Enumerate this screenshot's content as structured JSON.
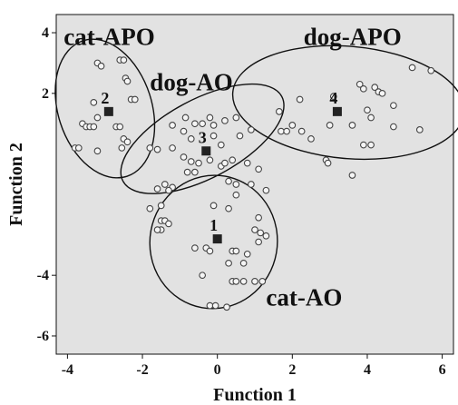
{
  "chart_data": {
    "type": "scatter",
    "xlabel": "Function 1",
    "ylabel": "Function 2",
    "xlim": [
      -4.3,
      6.3
    ],
    "ylim": [
      -6.6,
      4.6
    ],
    "xticks": [
      -4,
      -2,
      0,
      2,
      4,
      6
    ],
    "yticks": [
      -6,
      -4,
      2,
      4
    ],
    "tick_labels_x": [
      "-4",
      "-2",
      "0",
      "2",
      "4",
      "6"
    ],
    "tick_labels_y": [
      "-6",
      "-4",
      "2",
      "4"
    ],
    "grid": false,
    "background": "#e2e2e2",
    "groups": [
      {
        "name": "cat-APO",
        "centroid_label": "2",
        "centroid": [
          -2.9,
          1.4
        ],
        "ellipse": {
          "cx": -3.0,
          "cy": 1.5,
          "rx": 1.25,
          "ry": 2.35,
          "angle": -18
        },
        "label_pos": [
          -4.1,
          3.6
        ],
        "points": [
          [
            -3.2,
            3.0
          ],
          [
            -3.1,
            2.9
          ],
          [
            -2.6,
            3.1
          ],
          [
            -2.5,
            3.1
          ],
          [
            -2.45,
            2.5
          ],
          [
            -2.4,
            2.4
          ],
          [
            -2.3,
            1.8
          ],
          [
            -2.2,
            1.8
          ],
          [
            -3.3,
            1.7
          ],
          [
            -3.2,
            1.2
          ],
          [
            -3.6,
            1.0
          ],
          [
            -3.5,
            0.9
          ],
          [
            -3.4,
            0.9
          ],
          [
            -3.3,
            0.9
          ],
          [
            -2.7,
            0.9
          ],
          [
            -2.6,
            0.9
          ],
          [
            -2.5,
            0.5
          ],
          [
            -2.4,
            0.4
          ],
          [
            -3.8,
            0.2
          ],
          [
            -3.7,
            0.2
          ],
          [
            -3.2,
            0.1
          ],
          [
            -2.55,
            0.2
          ]
        ]
      },
      {
        "name": "dog-AO",
        "centroid_label": "3",
        "centroid": [
          -0.3,
          0.1
        ],
        "ellipse": {
          "cx": -0.4,
          "cy": 0.5,
          "rx": 2.4,
          "ry": 1.3,
          "angle": -28
        },
        "label_pos": [
          -1.8,
          2.1
        ],
        "points": [
          [
            -0.85,
            1.2
          ],
          [
            -0.6,
            1.0
          ],
          [
            -0.4,
            1.0
          ],
          [
            -0.2,
            1.2
          ],
          [
            -0.1,
            0.95
          ],
          [
            0.2,
            1.1
          ],
          [
            0.5,
            1.2
          ],
          [
            -1.2,
            0.95
          ],
          [
            -0.9,
            0.75
          ],
          [
            -0.7,
            0.5
          ],
          [
            -0.1,
            0.6
          ],
          [
            0.1,
            0.3
          ],
          [
            0.6,
            0.6
          ],
          [
            0.9,
            0.8
          ],
          [
            -1.8,
            0.2
          ],
          [
            -1.6,
            0.15
          ],
          [
            -1.2,
            0.2
          ],
          [
            -0.9,
            -0.1
          ],
          [
            -0.7,
            -0.25
          ],
          [
            -0.5,
            -0.3
          ],
          [
            -0.2,
            -0.2
          ],
          [
            0.1,
            -0.4
          ],
          [
            0.2,
            -0.3
          ],
          [
            0.4,
            -0.2
          ],
          [
            0.8,
            -0.3
          ],
          [
            1.1,
            -0.5
          ],
          [
            -0.8,
            -0.6
          ],
          [
            -0.6,
            -0.6
          ],
          [
            0.3,
            -0.9
          ],
          [
            0.5,
            -1.0
          ],
          [
            0.9,
            -1.0
          ],
          [
            1.3,
            -1.2
          ],
          [
            0.5,
            -1.35
          ]
        ]
      },
      {
        "name": "dog-APO",
        "centroid_label": "4",
        "centroid": [
          3.2,
          1.4
        ],
        "ellipse": {
          "cx": 3.5,
          "cy": 1.7,
          "rx": 3.1,
          "ry": 1.85,
          "angle": 5
        },
        "label_pos": [
          2.3,
          3.6
        ],
        "points": [
          [
            5.2,
            2.85
          ],
          [
            5.7,
            2.75
          ],
          [
            3.8,
            2.3
          ],
          [
            3.9,
            2.15
          ],
          [
            4.2,
            2.2
          ],
          [
            4.3,
            2.05
          ],
          [
            4.4,
            2.0
          ],
          [
            2.2,
            1.8
          ],
          [
            3.1,
            1.9
          ],
          [
            4.7,
            1.6
          ],
          [
            1.65,
            1.4
          ],
          [
            4.0,
            1.45
          ],
          [
            4.1,
            1.2
          ],
          [
            2.0,
            0.95
          ],
          [
            3.0,
            0.95
          ],
          [
            3.6,
            0.95
          ],
          [
            4.7,
            0.9
          ],
          [
            1.7,
            0.75
          ],
          [
            1.85,
            0.75
          ],
          [
            2.25,
            0.75
          ],
          [
            5.4,
            0.8
          ],
          [
            2.5,
            0.5
          ],
          [
            3.9,
            0.3
          ],
          [
            4.1,
            0.3
          ],
          [
            2.9,
            -0.2
          ],
          [
            2.95,
            -0.3
          ],
          [
            3.6,
            -0.7
          ]
        ]
      },
      {
        "name": "cat-AO",
        "centroid_label": "1",
        "centroid": [
          0.0,
          -2.8
        ],
        "ellipse": {
          "cx": -0.1,
          "cy": -2.9,
          "rx": 1.7,
          "ry": 2.2,
          "angle": 10
        },
        "label_pos": [
          1.3,
          -5.0
        ],
        "points": [
          [
            -1.2,
            -1.1
          ],
          [
            -1.3,
            -1.2
          ],
          [
            -1.4,
            -1.0
          ],
          [
            -1.6,
            -1.15
          ],
          [
            -1.5,
            -1.7
          ],
          [
            -1.8,
            -1.8
          ],
          [
            -0.1,
            -1.7
          ],
          [
            0.3,
            -1.8
          ],
          [
            1.1,
            -2.1
          ],
          [
            -1.5,
            -2.2
          ],
          [
            -1.4,
            -2.2
          ],
          [
            -1.3,
            -2.3
          ],
          [
            -1.5,
            -2.5
          ],
          [
            -1.6,
            -2.5
          ],
          [
            1.0,
            -2.5
          ],
          [
            1.15,
            -2.6
          ],
          [
            1.3,
            -2.7
          ],
          [
            1.1,
            -2.9
          ],
          [
            -0.3,
            -3.1
          ],
          [
            -0.2,
            -3.2
          ],
          [
            0.4,
            -3.2
          ],
          [
            0.5,
            -3.2
          ],
          [
            0.8,
            -3.3
          ],
          [
            0.3,
            -3.6
          ],
          [
            0.7,
            -3.6
          ],
          [
            -0.6,
            -3.1
          ],
          [
            -0.4,
            -4.0
          ],
          [
            0.4,
            -4.2
          ],
          [
            0.5,
            -4.2
          ],
          [
            0.7,
            -4.2
          ],
          [
            1.0,
            -4.2
          ],
          [
            1.2,
            -4.2
          ],
          [
            -0.2,
            -5.0
          ],
          [
            -0.05,
            -5.0
          ],
          [
            0.25,
            -5.05
          ]
        ]
      }
    ]
  }
}
